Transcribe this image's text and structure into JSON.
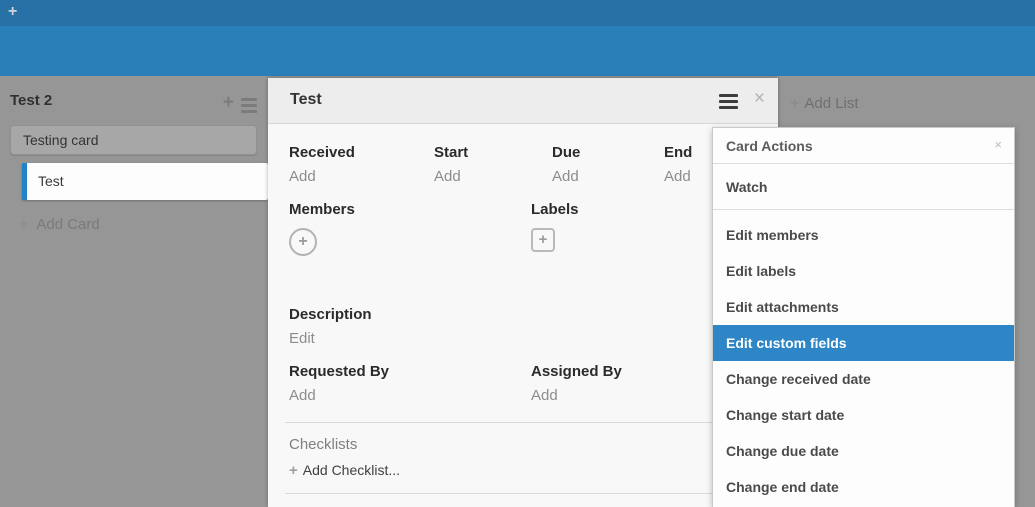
{
  "icons": {
    "plus": "+",
    "close": "×"
  },
  "topbar": {
    "add_icon": "+"
  },
  "board": {
    "add_list_label": "Add List"
  },
  "list": {
    "title": "Test 2",
    "cards": [
      {
        "title": "Testing card"
      },
      {
        "title": "Test"
      }
    ],
    "add_card_label": "Add Card"
  },
  "card_detail": {
    "title": "Test",
    "date_fields": [
      {
        "label": "Received",
        "action": "Add"
      },
      {
        "label": "Start",
        "action": "Add"
      },
      {
        "label": "Due",
        "action": "Add"
      },
      {
        "label": "End",
        "action": "Add"
      }
    ],
    "members": {
      "label": "Members"
    },
    "labels": {
      "label": "Labels"
    },
    "description": {
      "label": "Description",
      "action": "Edit"
    },
    "requested_by": {
      "label": "Requested By",
      "action": "Add"
    },
    "assigned_by": {
      "label": "Assigned By",
      "action": "Add"
    },
    "checklists": {
      "label": "Checklists",
      "add_label": "Add Checklist..."
    }
  },
  "card_actions": {
    "title": "Card Actions",
    "watch_label": "Watch",
    "items": [
      {
        "label": "Edit members",
        "selected": false
      },
      {
        "label": "Edit labels",
        "selected": false
      },
      {
        "label": "Edit attachments",
        "selected": false
      },
      {
        "label": "Edit custom fields",
        "selected": true
      },
      {
        "label": "Change received date",
        "selected": false
      },
      {
        "label": "Change start date",
        "selected": false
      },
      {
        "label": "Change due date",
        "selected": false
      },
      {
        "label": "Change end date",
        "selected": false
      }
    ]
  },
  "colors": {
    "topbar_blue": "#2771a6",
    "subbar_blue": "#2980b9",
    "board_gray": "#969696",
    "selected_item_blue": "#2e86c7",
    "card_accent_border_blue": "#2183c8"
  }
}
